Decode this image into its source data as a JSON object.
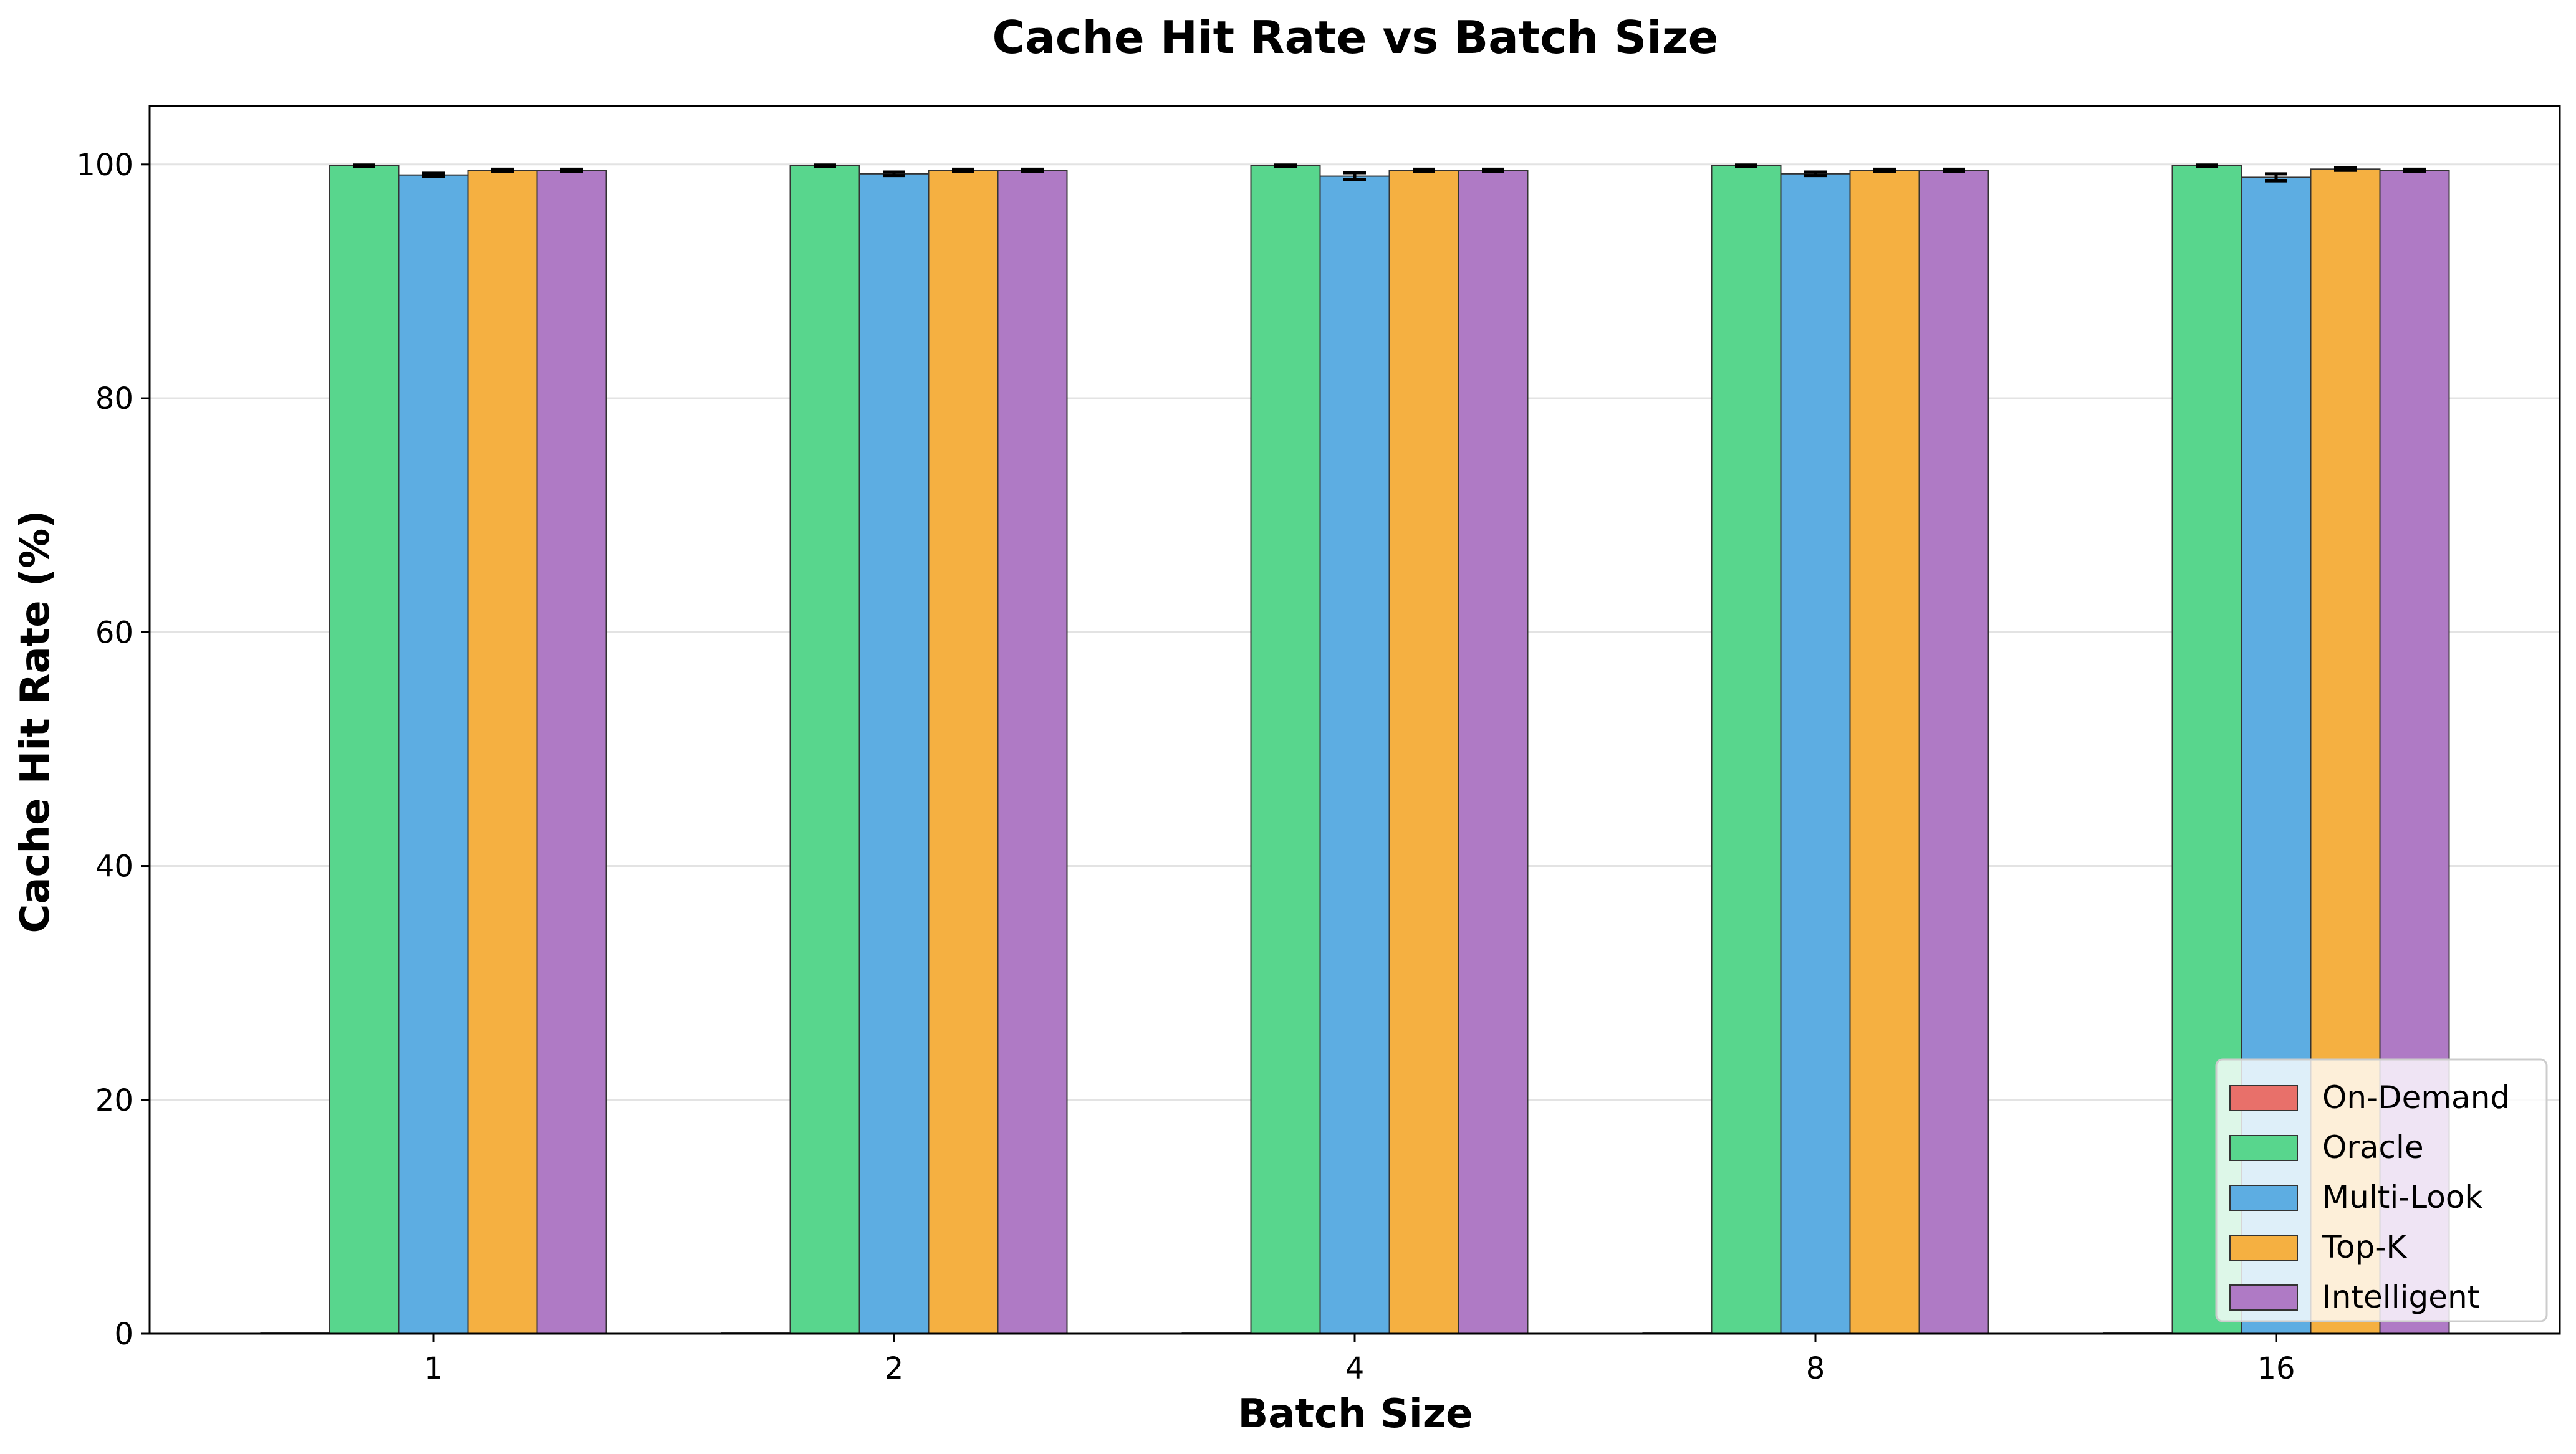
{
  "chart_data": {
    "type": "bar",
    "title": "Cache Hit Rate vs Batch Size",
    "xlabel": "Batch Size",
    "ylabel": "Cache Hit Rate (%)",
    "categories": [
      "1",
      "2",
      "4",
      "8",
      "16"
    ],
    "ylim": [
      0,
      105
    ],
    "yticks": [
      0,
      20,
      40,
      60,
      80,
      100
    ],
    "grid": "horizontal",
    "legend_position": "lower-right",
    "series": [
      {
        "name": "On-Demand",
        "color": "#e8706a",
        "values": [
          0,
          0,
          0,
          0,
          0
        ],
        "errors": [
          0,
          0,
          0,
          0,
          0
        ]
      },
      {
        "name": "Oracle",
        "color": "#58d68d",
        "values": [
          99.9,
          99.9,
          99.9,
          99.9,
          99.9
        ],
        "errors": [
          0.05,
          0.05,
          0.05,
          0.05,
          0.05
        ]
      },
      {
        "name": "Multi-Look",
        "color": "#5dade2",
        "values": [
          99.1,
          99.2,
          99.0,
          99.2,
          98.9
        ],
        "errors": [
          0.15,
          0.15,
          0.3,
          0.15,
          0.3
        ]
      },
      {
        "name": "Top-K",
        "color": "#f5b041",
        "values": [
          99.5,
          99.5,
          99.5,
          99.5,
          99.6
        ],
        "errors": [
          0.1,
          0.1,
          0.1,
          0.1,
          0.1
        ]
      },
      {
        "name": "Intelligent",
        "color": "#af7ac5",
        "values": [
          99.5,
          99.5,
          99.5,
          99.5,
          99.5
        ],
        "errors": [
          0.1,
          0.1,
          0.1,
          0.1,
          0.1
        ]
      }
    ]
  }
}
